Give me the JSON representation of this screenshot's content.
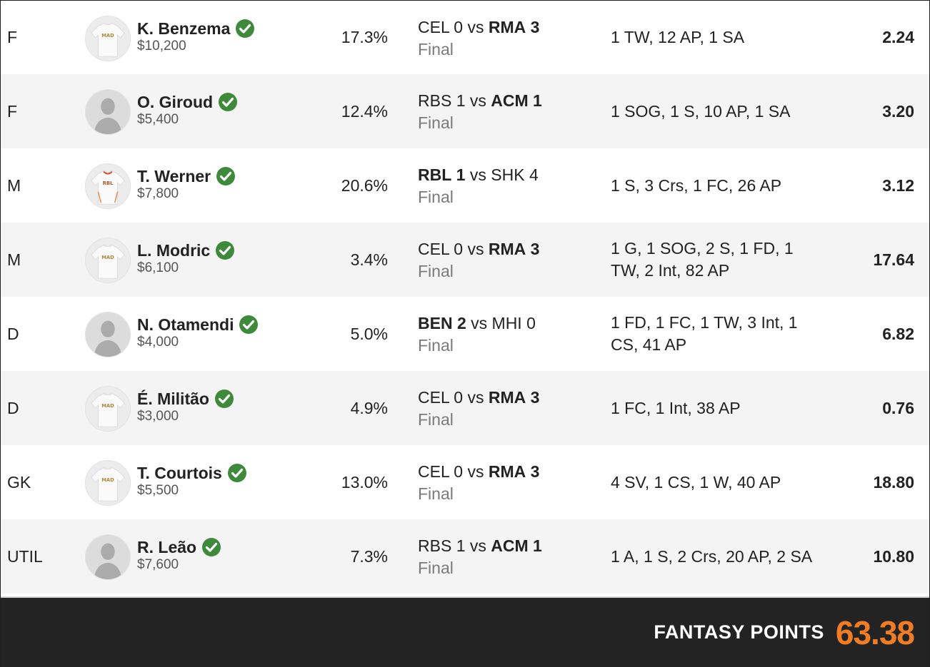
{
  "colors": {
    "accent": "#f07c25",
    "check": "#3f8a3a",
    "footer_bg": "#232323",
    "alt_row": "#f4f4f4"
  },
  "rows": [
    {
      "pos": "F",
      "name": "K. Benzema",
      "salary": "$10,200",
      "own": "17.3%",
      "team_a": "CEL",
      "score_a": "0",
      "team_b": "RMA",
      "score_b": "3",
      "bold": "b",
      "status": "Final",
      "stats": "1 TW, 12 AP, 1 SA",
      "fpts": "2.24",
      "avatar": "jersey-mad-icon"
    },
    {
      "pos": "F",
      "name": "O. Giroud",
      "salary": "$5,400",
      "own": "12.4%",
      "team_a": "RBS",
      "score_a": "1",
      "team_b": "ACM",
      "score_b": "1",
      "bold": "b",
      "status": "Final",
      "stats": "1 SOG, 1 S, 10 AP, 1 SA",
      "fpts": "3.20",
      "avatar": "silhouette-icon"
    },
    {
      "pos": "M",
      "name": "T. Werner",
      "salary": "$7,800",
      "own": "20.6%",
      "team_a": "RBL",
      "score_a": "1",
      "team_b": "SHK",
      "score_b": "4",
      "bold": "a",
      "status": "Final",
      "stats": "1 S, 3 Crs, 1 FC, 26 AP",
      "fpts": "3.12",
      "avatar": "jersey-rbl-icon"
    },
    {
      "pos": "M",
      "name": "L. Modric",
      "salary": "$6,100",
      "own": "3.4%",
      "team_a": "CEL",
      "score_a": "0",
      "team_b": "RMA",
      "score_b": "3",
      "bold": "b",
      "status": "Final",
      "stats": "1 G, 1 SOG, 2 S, 1 FD, 1 TW, 2 Int, 82 AP",
      "fpts": "17.64",
      "avatar": "jersey-mad-icon"
    },
    {
      "pos": "D",
      "name": "N. Otamendi",
      "salary": "$4,000",
      "own": "5.0%",
      "team_a": "BEN",
      "score_a": "2",
      "team_b": "MHI",
      "score_b": "0",
      "bold": "a",
      "status": "Final",
      "stats": "1 FD, 1 FC, 1 TW, 3 Int, 1 CS, 41 AP",
      "fpts": "6.82",
      "avatar": "silhouette-icon"
    },
    {
      "pos": "D",
      "name": "É. Militão",
      "salary": "$3,000",
      "own": "4.9%",
      "team_a": "CEL",
      "score_a": "0",
      "team_b": "RMA",
      "score_b": "3",
      "bold": "b",
      "status": "Final",
      "stats": "1 FC, 1 Int, 38 AP",
      "fpts": "0.76",
      "avatar": "jersey-mad-icon"
    },
    {
      "pos": "GK",
      "name": "T. Courtois",
      "salary": "$5,500",
      "own": "13.0%",
      "team_a": "CEL",
      "score_a": "0",
      "team_b": "RMA",
      "score_b": "3",
      "bold": "b",
      "status": "Final",
      "stats": "4 SV, 1 CS, 1 W, 40 AP",
      "fpts": "18.80",
      "avatar": "jersey-mad-icon"
    },
    {
      "pos": "UTIL",
      "name": "R. Leão",
      "salary": "$7,600",
      "own": "7.3%",
      "team_a": "RBS",
      "score_a": "1",
      "team_b": "ACM",
      "score_b": "1",
      "bold": "b",
      "status": "Final",
      "stats": "1 A, 1 S, 2 Crs, 20 AP, 2 SA",
      "fpts": "10.80",
      "avatar": "silhouette-icon"
    }
  ],
  "footer": {
    "label": "FANTASY POINTS",
    "total": "63.38"
  }
}
